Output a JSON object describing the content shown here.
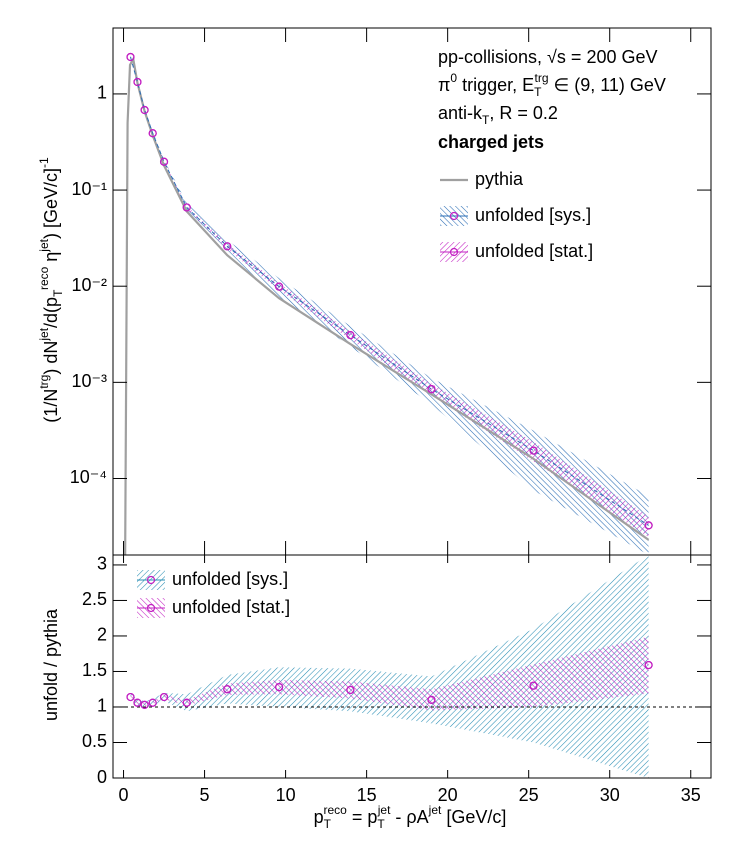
{
  "chart_data": [
    {
      "type": "line",
      "log_y": true,
      "y_label": [
        "(1/N",
        "trg",
        ") dN",
        "jet",
        "/d(p",
        "T",
        "reco",
        " η",
        "jet",
        ") [GeV/c]",
        "-1"
      ],
      "annotations": [
        [
          "pp-collisions, √s = 200 GeV"
        ],
        [
          "π",
          "0",
          " trigger, E",
          "T",
          "trg",
          " ∈ (9, 11) GeV"
        ],
        [
          "anti-k",
          "T",
          ", R = 0.2"
        ],
        [
          "charged jets"
        ]
      ],
      "xlim": [
        -0.65,
        36.25
      ],
      "ylim": [
        1.6e-05,
        4.85
      ],
      "yticks": [
        {
          "value": 0.0001,
          "label": "10⁻⁴"
        },
        {
          "value": 0.001,
          "label": "10⁻³"
        },
        {
          "value": 0.01,
          "label": "10⁻²"
        },
        {
          "value": 0.1,
          "label": "10⁻¹"
        },
        1
      ],
      "legend": "top-right",
      "series": [
        {
          "name": "pythia",
          "style": "line",
          "color": "#a0a0a0",
          "x": [
            0.1,
            0.25,
            0.4,
            0.6,
            0.86,
            1.3,
            1.8,
            2.5,
            3.9,
            6.4,
            9.6,
            14,
            19,
            25.3,
            32.4
          ],
          "values": [
            1.6e-05,
            0.5,
            2.0,
            2.3,
            1.3,
            0.66,
            0.37,
            0.18,
            0.06,
            0.021,
            0.0075,
            0.0025,
            0.00075,
            0.00016,
            2.3e-05
          ]
        },
        {
          "name": "unfolded [sys.]",
          "style": "band",
          "color": "#2a6db5",
          "x": [
            0.43,
            0.86,
            1.3,
            1.8,
            2.5,
            3.9,
            6.4,
            9.6,
            14,
            19,
            25.3,
            32.4
          ],
          "values": [
            2.42,
            1.33,
            0.68,
            0.39,
            0.197,
            0.066,
            0.026,
            0.0099,
            0.0031,
            0.00085,
            0.000195,
            3.25e-05
          ],
          "errors": [
            0.11,
            0.063,
            0.033,
            0.018,
            0.0104,
            0.0075,
            0.0042,
            0.0022,
            0.00075,
            0.00026,
            0.00012,
            3.3e-05
          ]
        },
        {
          "name": "unfolded [stat.]",
          "style": "band",
          "color": "#c21fc2",
          "x": [
            0.43,
            0.86,
            1.3,
            1.8,
            2.5,
            3.9,
            6.4,
            9.6,
            14,
            19,
            25.3,
            32.4
          ],
          "values": [
            2.42,
            1.33,
            0.68,
            0.39,
            0.197,
            0.066,
            0.026,
            0.0099,
            0.0031,
            0.00085,
            0.000195,
            3.25e-05
          ],
          "errors": [
            0.04,
            0.025,
            0.013,
            0.0074,
            0.0052,
            0.0025,
            0.0017,
            0.0008,
            0.0003,
            0.00012,
            4.5e-05,
            8e-06
          ]
        }
      ]
    },
    {
      "type": "line",
      "log_y": false,
      "y_label": [
        "unfold / pythia"
      ],
      "x_label": [
        "p",
        "T",
        "reco",
        " = p",
        "T",
        "jet",
        " - ρA",
        "jet",
        " [GeV/c]"
      ],
      "xlim": [
        -0.65,
        36.25
      ],
      "ylim": [
        0,
        3.14
      ],
      "xticks": [
        0,
        5,
        10,
        15,
        20,
        25,
        30,
        35
      ],
      "yticks": [
        0,
        0.5,
        1,
        1.5,
        2,
        2.5,
        3
      ],
      "hline": 1,
      "legend": "top-left",
      "series": [
        {
          "name": "unfolded [sys.]",
          "style": "band",
          "color": "#2a8fb5",
          "x": [
            0.43,
            0.86,
            1.3,
            1.8,
            2.5,
            3.9,
            6.4,
            9.6,
            14,
            19,
            25.3,
            32.4
          ],
          "values": [
            1.14,
            1.06,
            1.03,
            1.06,
            1.14,
            1.06,
            1.25,
            1.28,
            1.24,
            1.1,
            1.3,
            1.59
          ],
          "errors": [
            0.05,
            0.05,
            0.05,
            0.05,
            0.06,
            0.12,
            0.2,
            0.28,
            0.3,
            0.33,
            0.8,
            1.6
          ]
        },
        {
          "name": "unfolded [stat.]",
          "style": "band",
          "color": "#c21fc2",
          "x": [
            0.43,
            0.86,
            1.3,
            1.8,
            2.5,
            3.9,
            6.4,
            9.6,
            14,
            19,
            25.3,
            32.4
          ],
          "values": [
            1.14,
            1.06,
            1.03,
            1.06,
            1.14,
            1.06,
            1.25,
            1.28,
            1.24,
            1.1,
            1.3,
            1.59
          ],
          "errors": [
            0.02,
            0.02,
            0.02,
            0.02,
            0.03,
            0.04,
            0.08,
            0.1,
            0.12,
            0.15,
            0.3,
            0.4
          ]
        }
      ]
    }
  ]
}
